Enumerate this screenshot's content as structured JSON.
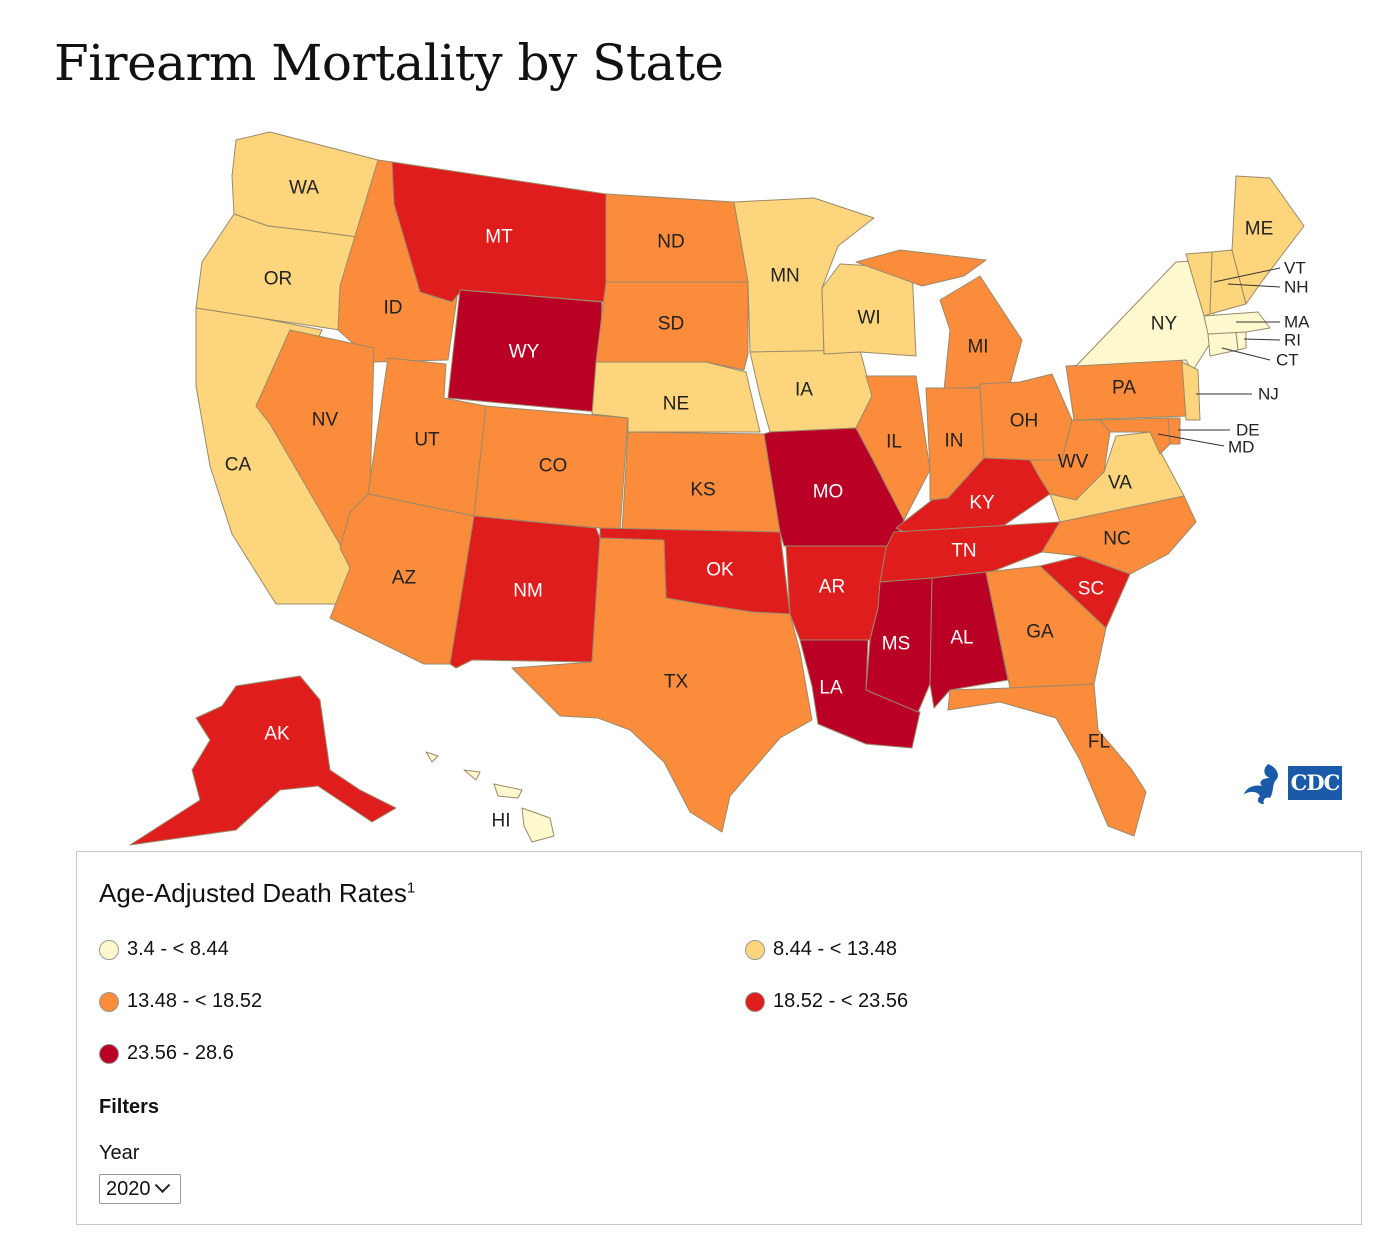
{
  "title": "Firearm Mortality by State",
  "colors": {
    "1": "#fdf8cd",
    "2": "#fdd57c",
    "3": "#fb8c3c",
    "4": "#e01d1d",
    "5": "#bb0026",
    "border": "#9a8a6a"
  },
  "legend": {
    "title": "Age-Adjusted Death Rates",
    "footnote": "1",
    "items": [
      {
        "label": "3.4 - < 8.44",
        "category": 1
      },
      {
        "label": "8.44 - < 13.48",
        "category": 2
      },
      {
        "label": "13.48 - < 18.52",
        "category": 3
      },
      {
        "label": "18.52 - < 23.56",
        "category": 4
      },
      {
        "label": "23.56 - 28.6",
        "category": 5
      }
    ]
  },
  "filters": {
    "heading": "Filters",
    "year_label": "Year",
    "year_value": "2020"
  },
  "logo": {
    "icon": "hhs-eagle-icon",
    "text": "CDC"
  },
  "states": [
    {
      "code": "WA",
      "category": 2
    },
    {
      "code": "OR",
      "category": 2
    },
    {
      "code": "CA",
      "category": 2
    },
    {
      "code": "ID",
      "category": 3
    },
    {
      "code": "NV",
      "category": 3
    },
    {
      "code": "UT",
      "category": 3
    },
    {
      "code": "AZ",
      "category": 3
    },
    {
      "code": "MT",
      "category": 4
    },
    {
      "code": "WY",
      "category": 5
    },
    {
      "code": "CO",
      "category": 3
    },
    {
      "code": "NM",
      "category": 4
    },
    {
      "code": "ND",
      "category": 3
    },
    {
      "code": "SD",
      "category": 3
    },
    {
      "code": "NE",
      "category": 2
    },
    {
      "code": "KS",
      "category": 3
    },
    {
      "code": "OK",
      "category": 4
    },
    {
      "code": "TX",
      "category": 3
    },
    {
      "code": "MN",
      "category": 2
    },
    {
      "code": "IA",
      "category": 2
    },
    {
      "code": "MO",
      "category": 5
    },
    {
      "code": "AR",
      "category": 4
    },
    {
      "code": "LA",
      "category": 5
    },
    {
      "code": "WI",
      "category": 2
    },
    {
      "code": "IL",
      "category": 3
    },
    {
      "code": "MI",
      "category": 3
    },
    {
      "code": "IN",
      "category": 3
    },
    {
      "code": "OH",
      "category": 3
    },
    {
      "code": "KY",
      "category": 4
    },
    {
      "code": "TN",
      "category": 4
    },
    {
      "code": "MS",
      "category": 5
    },
    {
      "code": "AL",
      "category": 5
    },
    {
      "code": "GA",
      "category": 3
    },
    {
      "code": "FL",
      "category": 3
    },
    {
      "code": "SC",
      "category": 4
    },
    {
      "code": "NC",
      "category": 3
    },
    {
      "code": "VA",
      "category": 2
    },
    {
      "code": "WV",
      "category": 3
    },
    {
      "code": "PA",
      "category": 3
    },
    {
      "code": "NY",
      "category": 1
    },
    {
      "code": "NJ",
      "category": 2
    },
    {
      "code": "DE",
      "category": 3
    },
    {
      "code": "MD",
      "category": 3
    },
    {
      "code": "CT",
      "category": 1
    },
    {
      "code": "RI",
      "category": 1
    },
    {
      "code": "MA",
      "category": 1
    },
    {
      "code": "VT",
      "category": 2
    },
    {
      "code": "NH",
      "category": 2
    },
    {
      "code": "ME",
      "category": 2
    },
    {
      "code": "AK",
      "category": 4
    },
    {
      "code": "HI",
      "category": 1
    }
  ]
}
